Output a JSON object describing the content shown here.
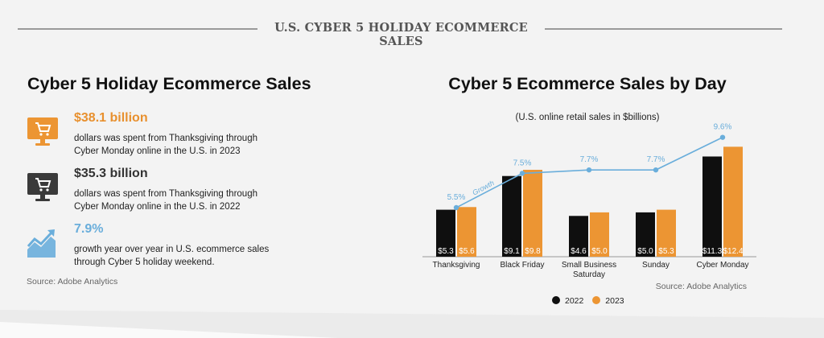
{
  "banner": {
    "title": "U.S. CYBER 5 HOLIDAY ECOMMERCE SALES"
  },
  "left": {
    "title": "Cyber 5 Holiday Ecommerce Sales",
    "stats": [
      {
        "icon": "monitor-cart-icon",
        "value": "$38.1 billion",
        "text": "dollars was spent from Thanksgiving through Cyber Monday online in the U.S. in 2023",
        "color": "#e8902e"
      },
      {
        "icon": "monitor-cart-icon",
        "value": "$35.3 billion",
        "text": "dollars was spent from Thanksgiving through Cyber Monday online in the U.S. in 2022",
        "color": "#333333"
      },
      {
        "icon": "growth-chart-icon",
        "value": "7.9%",
        "text": "growth year over year in U.S. ecommerce sales through Cyber 5 holiday weekend.",
        "color": "#6aaedb"
      }
    ],
    "source": "Source: Adobe Analytics"
  },
  "chart_data": {
    "type": "bar",
    "title": "Cyber 5 Ecommerce Sales by Day",
    "subtitle": "(U.S. online retail sales in $billions)",
    "categories": [
      "Thanksgiving",
      "Black Friday",
      "Small Business Saturday",
      "Sunday",
      "Cyber Monday"
    ],
    "series": [
      {
        "name": "2022",
        "color": "#0f0f0f",
        "values": [
          5.3,
          9.1,
          4.6,
          5.0,
          11.3
        ],
        "labels": [
          "$5.3",
          "$9.1",
          "$4.6",
          "$5.0",
          "$11.3"
        ]
      },
      {
        "name": "2023",
        "color": "#ec9533",
        "values": [
          5.6,
          9.8,
          5.0,
          5.3,
          12.4
        ],
        "labels": [
          "$5.6",
          "$9.8",
          "$5.0",
          "$5.3",
          "$12.4"
        ]
      }
    ],
    "growth": {
      "label": "Growth",
      "color": "#6aaedb",
      "values": [
        5.5,
        7.5,
        7.7,
        7.7,
        9.6
      ],
      "labels": [
        "5.5%",
        "7.5%",
        "7.7%",
        "7.7%",
        "9.6%"
      ]
    },
    "ylim": [
      0,
      14
    ],
    "legend_position": "bottom",
    "grid": false,
    "source": "Source: Adobe Analytics"
  }
}
